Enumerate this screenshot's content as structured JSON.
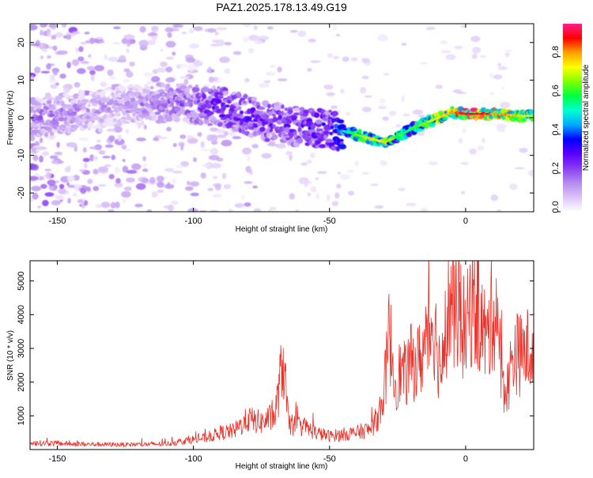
{
  "title": "PAZ1.2025.178.13.49.G19",
  "colors": {
    "snr_line": "#e8322a",
    "spectrum_low": "#c9a7ef",
    "spectrum_mid": "#7a2df0",
    "spectrum_high": "#ff2020"
  },
  "chart_data": [
    {
      "type": "heatmap",
      "xlabel": "Height of straight line (km)",
      "ylabel": "Frequency (Hz)",
      "xlim": [
        -160,
        25
      ],
      "ylim": [
        -25,
        25
      ],
      "xticks": [
        -150,
        -100,
        -50,
        0
      ],
      "yticks": [
        -20,
        -10,
        0,
        10,
        20
      ],
      "colorbar": {
        "label": "Normalized spectral amplitude",
        "range": [
          0.0,
          0.97
        ],
        "ticks": [
          "0.0",
          "0.2",
          "0.4",
          "0.6",
          "0.8"
        ],
        "tick_values": [
          0.0,
          0.2,
          0.4,
          0.6,
          0.8
        ],
        "colormap": [
          "#ffffff",
          "#dcc4f7",
          "#b58bf0",
          "#8a3df0",
          "#5a00ff",
          "#0000ff",
          "#00a8ff",
          "#00ffd0",
          "#00ff40",
          "#80ff00",
          "#ffff00",
          "#ffa000",
          "#ff0000",
          "#ff1e8c"
        ]
      },
      "ridge": [
        {
          "x": -158,
          "y": 0.0,
          "a": 0.2
        },
        {
          "x": -130,
          "y": 3.0,
          "a": 0.15
        },
        {
          "x": -110,
          "y": 4.0,
          "a": 0.2
        },
        {
          "x": -100,
          "y": 3.5,
          "a": 0.25
        },
        {
          "x": -90,
          "y": 3.0,
          "a": 0.3
        },
        {
          "x": -80,
          "y": 0.5,
          "a": 0.3
        },
        {
          "x": -70,
          "y": -1.5,
          "a": 0.28
        },
        {
          "x": -60,
          "y": -2.5,
          "a": 0.3
        },
        {
          "x": -50,
          "y": -3.0,
          "a": 0.35
        },
        {
          "x": -45,
          "y": -3.5,
          "a": 0.45
        },
        {
          "x": -40,
          "y": -4.5,
          "a": 0.6
        },
        {
          "x": -35,
          "y": -5.5,
          "a": 0.7
        },
        {
          "x": -30,
          "y": -6.5,
          "a": 0.7
        },
        {
          "x": -25,
          "y": -5.0,
          "a": 0.55
        },
        {
          "x": -20,
          "y": -3.0,
          "a": 0.55
        },
        {
          "x": -15,
          "y": -1.5,
          "a": 0.6
        },
        {
          "x": -10,
          "y": 0.0,
          "a": 0.7
        },
        {
          "x": -5,
          "y": 1.5,
          "a": 0.75
        },
        {
          "x": 0,
          "y": 1.0,
          "a": 0.85
        },
        {
          "x": 5,
          "y": 1.0,
          "a": 0.9
        },
        {
          "x": 10,
          "y": 1.0,
          "a": 0.8
        },
        {
          "x": 15,
          "y": 0.8,
          "a": 0.75
        },
        {
          "x": 20,
          "y": 0.5,
          "a": 0.7
        },
        {
          "x": 25,
          "y": 0.5,
          "a": 0.65
        }
      ]
    },
    {
      "type": "line",
      "xlabel": "Height of straight line (km)",
      "ylabel": "SNR (10 * v/v)",
      "xlim": [
        -160,
        25
      ],
      "ylim": [
        0,
        5600
      ],
      "xticks": [
        -150,
        -100,
        -50,
        0
      ],
      "yticks": [
        1000,
        2000,
        3000,
        4000,
        5000
      ],
      "series": [
        {
          "x": [
            -160,
            -150,
            -140,
            -130,
            -120,
            -110,
            -100,
            -95,
            -90,
            -85,
            -80,
            -75,
            -70,
            -67,
            -65,
            -60,
            -55,
            -50,
            -45,
            -40,
            -35,
            -32,
            -30,
            -28,
            -26,
            -24,
            -22,
            -20,
            -18,
            -15,
            -13,
            -12,
            -10,
            -8,
            -7,
            -6,
            -5,
            -3,
            0,
            2,
            5,
            8,
            10,
            12,
            13,
            15,
            17,
            18,
            20,
            22,
            25
          ],
          "y": [
            200,
            180,
            160,
            150,
            150,
            170,
            300,
            350,
            500,
            550,
            900,
            800,
            1000,
            2700,
            700,
            700,
            500,
            400,
            450,
            500,
            600,
            1000,
            1700,
            3500,
            2000,
            2300,
            2200,
            2600,
            2500,
            3000,
            3500,
            4000,
            2700,
            2300,
            3800,
            4300,
            4300,
            4200,
            3400,
            4300,
            3900,
            3200,
            4200,
            4000,
            2200,
            1700,
            2600,
            2900,
            2800,
            2900,
            3100
          ]
        }
      ]
    }
  ]
}
